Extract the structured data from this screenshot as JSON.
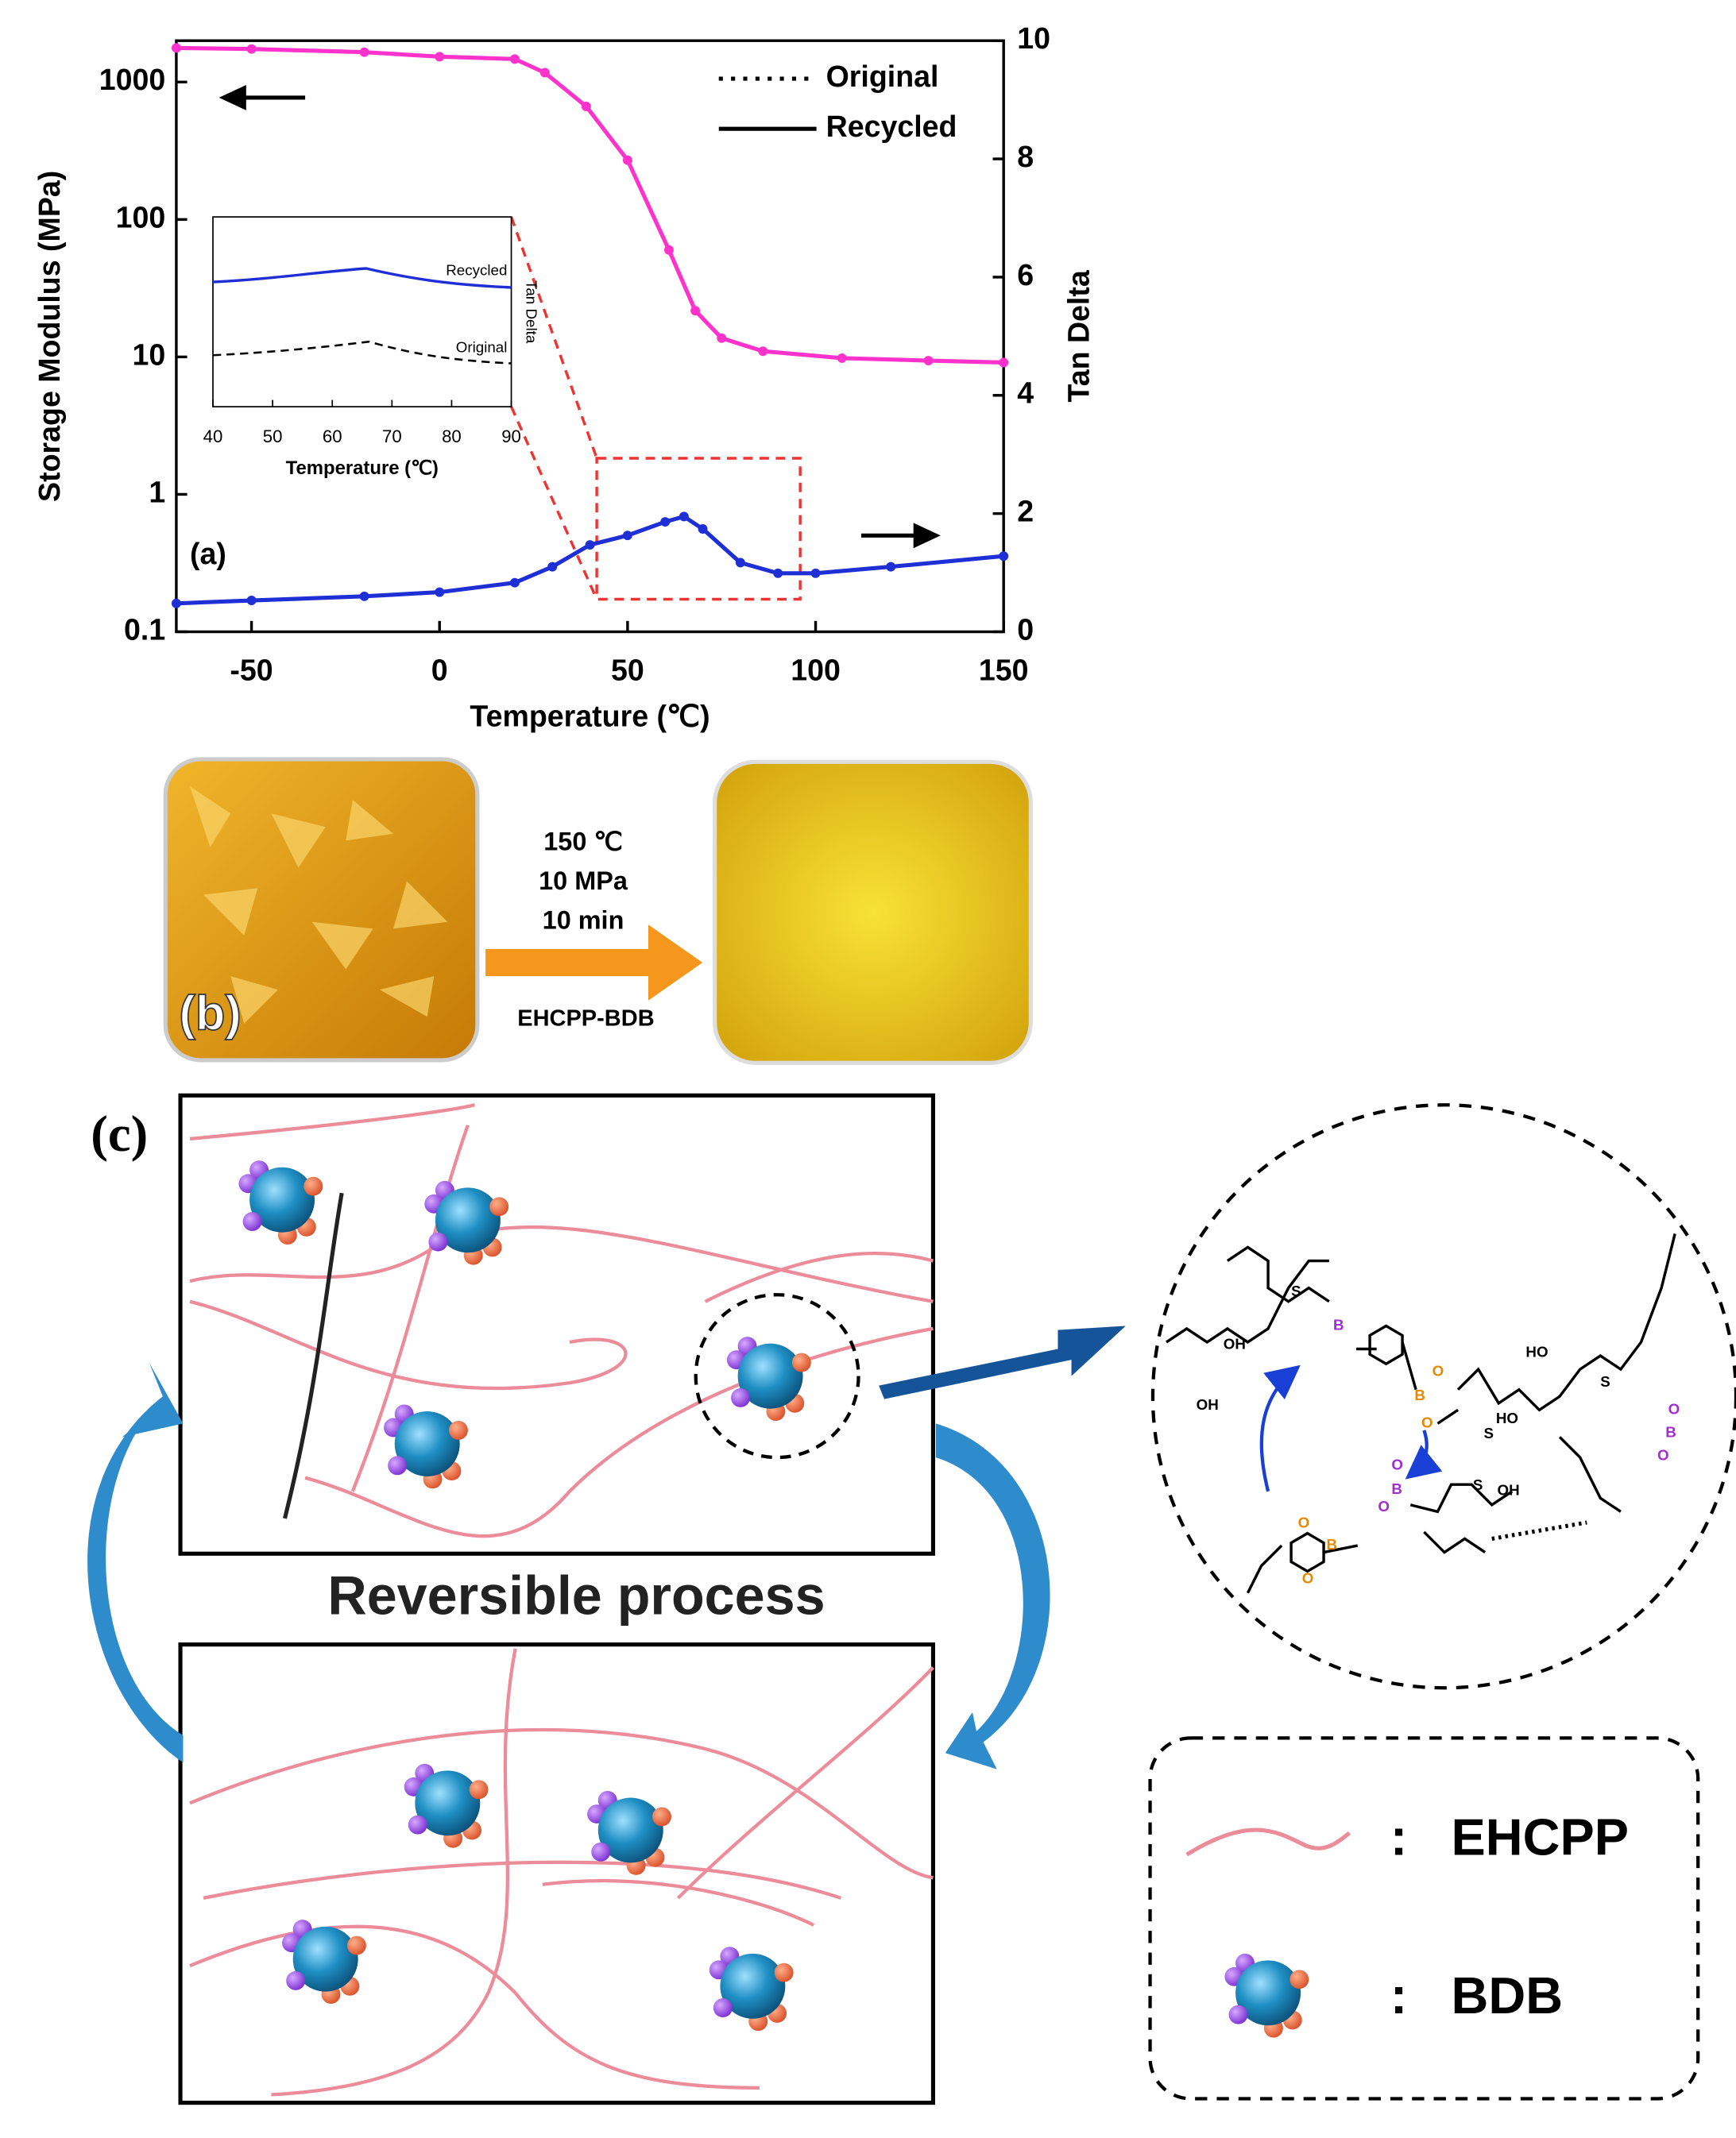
{
  "chart_data": {
    "type": "line",
    "panel_label": "(a)",
    "xlabel": "Temperature (℃)",
    "ylabel": "Storage Modulus (MPa)",
    "y2label": "Tan Delta",
    "xlim": [
      -70,
      150
    ],
    "xticks": [
      -50,
      0,
      50,
      100,
      150
    ],
    "ylim": [
      0.1,
      2000
    ],
    "yticks": [
      0.1,
      1,
      10,
      100,
      1000
    ],
    "y_log": true,
    "y2lim": [
      0,
      10
    ],
    "y2ticks": [
      0,
      2,
      4,
      6,
      8,
      10
    ],
    "legend_loc": "upper right",
    "legend": [
      {
        "name": "Original",
        "dash": "dotted"
      },
      {
        "name": "Recycled",
        "dash": "solid"
      }
    ],
    "series": [
      {
        "color": "#ff33cc",
        "axis": "y",
        "x": [
          -70,
          -50,
          -20,
          0,
          20,
          28,
          39,
          50,
          61,
          68,
          75,
          86,
          107,
          130,
          150
        ],
        "values": [
          1770,
          1740,
          1650,
          1530,
          1470,
          1170,
          665,
          270,
          60,
          21.7,
          13.7,
          11,
          9.8,
          9.4,
          9.1
        ]
      },
      {
        "color": "#1f2fd6",
        "axis": "y2",
        "x": [
          -70,
          -50,
          -20,
          0,
          20,
          30,
          40,
          50,
          60,
          65,
          70,
          80,
          90,
          100,
          120,
          150
        ],
        "values": [
          0.48,
          0.53,
          0.6,
          0.67,
          0.83,
          1.1,
          1.47,
          1.63,
          1.86,
          1.95,
          1.74,
          1.17,
          0.99,
          0.99,
          1.1,
          1.28
        ]
      }
    ],
    "inset": {
      "xlabel": "Temperature (℃)",
      "ylabel": "Tan Delta",
      "xlim": [
        40,
        90
      ],
      "xticks": [
        40,
        50,
        60,
        70,
        80,
        90
      ],
      "labels": [
        "Recycled",
        "Original"
      ]
    }
  },
  "panel_b": {
    "label": "(b)",
    "conditions": [
      "150 ℃",
      "10 MPa",
      "10 min"
    ],
    "material": "EHCPP-BDB"
  },
  "panel_c": {
    "label": "(c)",
    "process": "Reversible process",
    "separator": ":",
    "legend": [
      "EHCPP",
      "BDB"
    ],
    "chem_labels": [
      "OH",
      "OH",
      "S",
      "B",
      "B",
      "O",
      "O",
      "S",
      "HO",
      "HO",
      "S",
      "B",
      "O",
      "O",
      "B",
      "O",
      "O",
      "S",
      "OH",
      "B",
      "O",
      "O"
    ]
  }
}
